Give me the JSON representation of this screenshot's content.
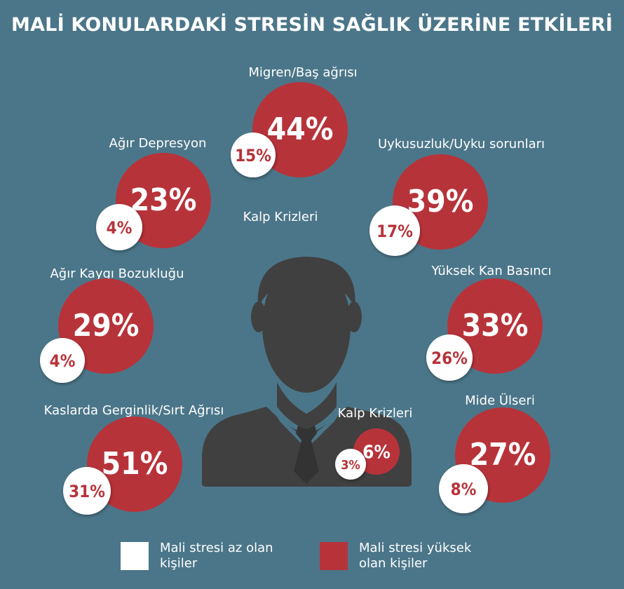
{
  "title": "MALİ KONULARDAKİ STRESİN SAĞLIK ÜZERİNE ETKİLERİ",
  "stray_label": "Kalp Krizleri",
  "colors": {
    "background": "#4b7689",
    "high": "#b7333a",
    "low": "#ffffff",
    "silhouette": "#404040"
  },
  "legend": [
    {
      "label": "Mali stresi az olan kişiler",
      "color": "#ffffff"
    },
    {
      "label": "Mali stresi yüksek olan kişiler",
      "color": "#b7333a"
    }
  ],
  "chart_data": {
    "type": "bubble",
    "title": "MALİ KONULARDAKİ STRESİN SAĞLIK ÜZERİNE ETKİLERİ",
    "series": [
      {
        "name": "Mali stresi yüksek olan kişiler",
        "color": "#b7333a"
      },
      {
        "name": "Mali stresi az olan kişiler",
        "color": "#ffffff"
      }
    ],
    "categories": [
      "Migren/Baş ağrısı",
      "Ağır Depresyon",
      "Uykusuzluk/Uyku sorunları",
      "Ağır Kaygı Bozukluğu",
      "Yüksek Kan Basıncı",
      "Kaslarda Gerginlik/Sırt Ağrısı",
      "Kalp Krizleri",
      "Mide Ülseri"
    ],
    "high": [
      44,
      23,
      39,
      29,
      33,
      51,
      6,
      27
    ],
    "low": [
      15,
      4,
      17,
      4,
      26,
      31,
      3,
      8
    ],
    "display": {
      "high": [
        "44%",
        "23%",
        "39%",
        "29%",
        "33%",
        "51%",
        "6%",
        "27%"
      ],
      "low": [
        "15%",
        "4%",
        "17%",
        "4%",
        "26%",
        "31%",
        "3%",
        "8%"
      ]
    }
  }
}
